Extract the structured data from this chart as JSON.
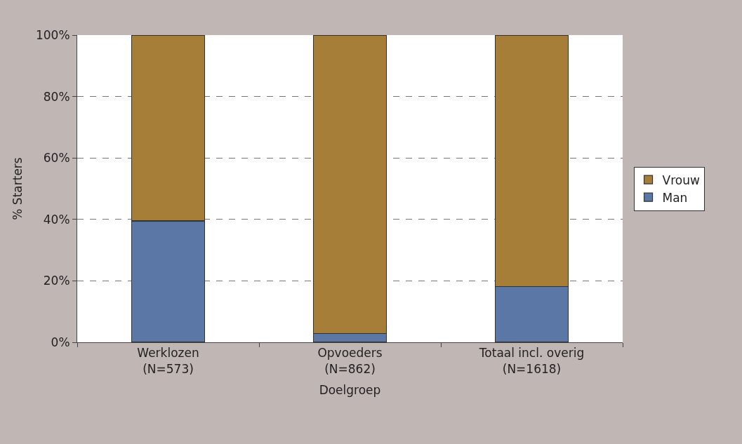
{
  "chart_data": {
    "type": "bar",
    "stacked": true,
    "xlabel": "Doelgroep",
    "ylabel": "% Starters",
    "categories": [
      "Werklozen\n(N=573)",
      "Opvoeders\n(N=862)",
      "Totaal incl. overig\n(N=1618)"
    ],
    "series": [
      {
        "name": "Man",
        "color": "#5b77a5",
        "values": [
          39.5,
          2.8,
          18.1
        ]
      },
      {
        "name": "Vrouw",
        "color": "#a67e37",
        "values": [
          60.5,
          97.2,
          81.9
        ]
      }
    ],
    "ylim": [
      0,
      100
    ],
    "yticks": [
      {
        "value": 0,
        "label": "0%"
      },
      {
        "value": 20,
        "label": "20%"
      },
      {
        "value": 40,
        "label": "40%"
      },
      {
        "value": 60,
        "label": "60%"
      },
      {
        "value": 80,
        "label": "80%"
      },
      {
        "value": 100,
        "label": "100%"
      }
    ],
    "grid": "y",
    "legend": "right"
  }
}
